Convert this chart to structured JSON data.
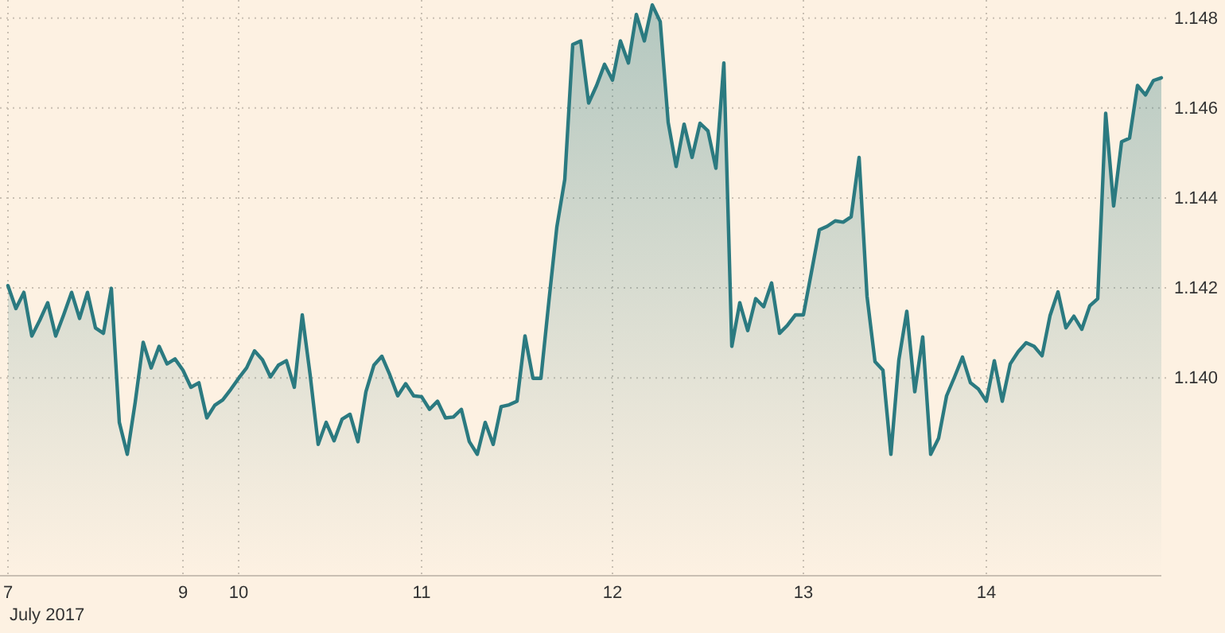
{
  "chart_data": {
    "type": "area",
    "xlabel": "July 2017",
    "color": "#2b7a80",
    "grid": true,
    "ylim": [
      1.1356,
      1.1484
    ],
    "yticks": [
      {
        "value": 1.14,
        "label": "1.140"
      },
      1.142,
      1.144,
      1.146,
      1.148
    ],
    "categories": [
      "7",
      null,
      null,
      null,
      null,
      null,
      null,
      null,
      null,
      null,
      null,
      null,
      null,
      null,
      null,
      null,
      null,
      null,
      null,
      null,
      null,
      null,
      "9",
      null,
      null,
      null,
      null,
      null,
      null,
      "10",
      null,
      null,
      null,
      null,
      null,
      null,
      null,
      null,
      null,
      null,
      null,
      null,
      null,
      null,
      null,
      null,
      null,
      null,
      null,
      null,
      null,
      null,
      "11",
      null,
      null,
      null,
      null,
      null,
      null,
      null,
      null,
      null,
      null,
      null,
      null,
      null,
      null,
      null,
      null,
      null,
      null,
      null,
      null,
      null,
      null,
      null,
      "12",
      null,
      null,
      null,
      null,
      null,
      null,
      null,
      null,
      null,
      null,
      null,
      null,
      null,
      null,
      null,
      null,
      null,
      null,
      null,
      null,
      null,
      null,
      null,
      "13",
      null,
      null,
      null,
      null,
      null,
      null,
      null,
      null,
      null,
      null,
      null,
      null,
      null,
      null,
      null,
      null,
      null,
      null,
      null,
      null,
      null,
      null,
      "14",
      null,
      null,
      null,
      null,
      null,
      null,
      null,
      null,
      null,
      null,
      null,
      null,
      null,
      null,
      null,
      null,
      null,
      null,
      null,
      null,
      null,
      null
    ],
    "values": [
      1.14205,
      1.14154,
      1.1419,
      1.14093,
      1.14128,
      1.14167,
      1.14093,
      1.1414,
      1.1419,
      1.14132,
      1.1419,
      1.14111,
      1.14099,
      1.14199,
      1.13901,
      1.1383,
      1.13946,
      1.14079,
      1.14022,
      1.1407,
      1.14031,
      1.14042,
      1.14017,
      1.13979,
      1.13989,
      1.13911,
      1.13939,
      1.13951,
      1.13974,
      1.13999,
      1.14022,
      1.1406,
      1.1404,
      1.14002,
      1.14028,
      1.14038,
      1.13979,
      1.1414,
      1.14005,
      1.13852,
      1.13901,
      1.1386,
      1.13908,
      1.13919,
      1.13858,
      1.13969,
      1.14028,
      1.14048,
      1.14007,
      1.1396,
      1.13987,
      1.1396,
      1.13958,
      1.1393,
      1.13948,
      1.13911,
      1.13913,
      1.1393,
      1.13858,
      1.1383,
      1.13901,
      1.13852,
      1.13936,
      1.1394,
      1.13948,
      1.14093,
      1.13999,
      1.13999,
      1.1417,
      1.14335,
      1.14441,
      1.14741,
      1.14749,
      1.14611,
      1.1465,
      1.14697,
      1.14662,
      1.14749,
      1.147,
      1.14808,
      1.14749,
      1.14829,
      1.14792,
      1.14568,
      1.1447,
      1.14564,
      1.1449,
      1.14566,
      1.14549,
      1.14466,
      1.147,
      1.1407,
      1.14167,
      1.14105,
      1.14176,
      1.14158,
      1.14211,
      1.14099,
      1.14117,
      1.1414,
      1.1414,
      1.14234,
      1.14329,
      1.14337,
      1.14349,
      1.14346,
      1.14358,
      1.1449,
      1.14181,
      1.14036,
      1.14017,
      1.1383,
      1.1404,
      1.14148,
      1.13969,
      1.14091,
      1.1383,
      1.13866,
      1.1396,
      1.14002,
      1.14046,
      1.13989,
      1.13975,
      1.13948,
      1.14038,
      1.13948,
      1.14031,
      1.14058,
      1.14078,
      1.1407,
      1.14049,
      1.14138,
      1.14191,
      1.14111,
      1.14137,
      1.14108,
      1.1416,
      1.14176,
      1.14588,
      1.14382,
      1.14525,
      1.14533,
      1.1465,
      1.14629,
      1.14661,
      1.14667
    ]
  }
}
